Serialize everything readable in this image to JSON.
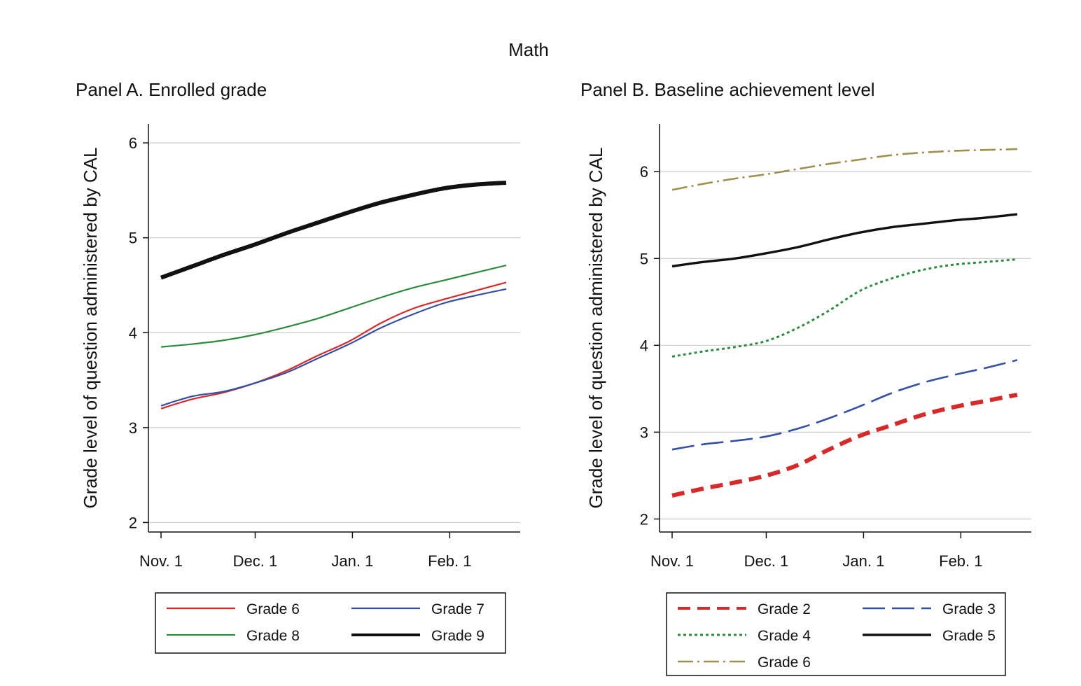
{
  "figure": {
    "title": "Math"
  },
  "colors": {
    "grade2": "#d62a2a",
    "grade3": "#3550a2",
    "grade4": "#2e8a3e",
    "grade5": "#111111",
    "grade6a": "#d62a2a",
    "grade6b": "#a09050",
    "grade7": "#3550a2",
    "grade8": "#2e8a3e",
    "grade9": "#111111",
    "grid": "#cccccc"
  },
  "chart_data": [
    {
      "type": "line",
      "title": "Panel A. Enrolled grade",
      "xlabel": "",
      "ylabel": "Grade level of question administered by CAL",
      "ylim": [
        1.9,
        6.2
      ],
      "yticks": [
        2,
        3,
        4,
        5,
        6
      ],
      "xlim": [
        -2,
        113
      ],
      "x_ticks": [
        {
          "day": 0,
          "label": "Nov. 1"
        },
        {
          "day": 30,
          "label": "Dec. 1"
        },
        {
          "day": 61,
          "label": "Jan. 1"
        },
        {
          "day": 92,
          "label": "Feb. 1"
        }
      ],
      "grid": true,
      "legend_position": "bottom",
      "legend_columns": 2,
      "x": [
        0,
        10,
        20,
        30,
        40,
        50,
        60,
        70,
        80,
        90,
        100,
        110
      ],
      "series": [
        {
          "name": "Grade 6",
          "color_key": "grade6a",
          "dash": "solid",
          "weight": 2.2,
          "values": [
            3.2,
            3.3,
            3.37,
            3.47,
            3.6,
            3.76,
            3.91,
            4.1,
            4.25,
            4.35,
            4.44,
            4.53
          ]
        },
        {
          "name": "Grade 7",
          "color_key": "grade7",
          "dash": "solid",
          "weight": 2.2,
          "values": [
            3.23,
            3.33,
            3.38,
            3.47,
            3.58,
            3.73,
            3.88,
            4.05,
            4.19,
            4.31,
            4.39,
            4.46
          ]
        },
        {
          "name": "Grade 8",
          "color_key": "grade8",
          "dash": "solid",
          "weight": 2.2,
          "values": [
            3.85,
            3.88,
            3.92,
            3.98,
            4.06,
            4.15,
            4.26,
            4.37,
            4.47,
            4.55,
            4.63,
            4.71
          ]
        },
        {
          "name": "Grade 9",
          "color_key": "grade9",
          "dash": "solid",
          "weight": 6,
          "values": [
            4.58,
            4.7,
            4.82,
            4.93,
            5.05,
            5.16,
            5.27,
            5.37,
            5.45,
            5.52,
            5.56,
            5.58
          ]
        }
      ]
    },
    {
      "type": "line",
      "title": "Panel B. Baseline achievement level",
      "xlabel": "",
      "ylabel": "Grade level of question administered by CAL",
      "ylim": [
        1.85,
        6.55
      ],
      "yticks": [
        2,
        3,
        4,
        5,
        6
      ],
      "xlim": [
        -2,
        113
      ],
      "x_ticks": [
        {
          "day": 0,
          "label": "Nov. 1"
        },
        {
          "day": 30,
          "label": "Dec. 1"
        },
        {
          "day": 61,
          "label": "Jan. 1"
        },
        {
          "day": 92,
          "label": "Feb. 1"
        }
      ],
      "grid": true,
      "legend_position": "bottom",
      "legend_columns": 2,
      "x": [
        0,
        10,
        20,
        30,
        40,
        50,
        60,
        70,
        80,
        90,
        100,
        110
      ],
      "series": [
        {
          "name": "Grade 2",
          "color_key": "grade2",
          "dash": "18,10",
          "weight": 6,
          "values": [
            2.27,
            2.35,
            2.42,
            2.5,
            2.62,
            2.8,
            2.96,
            3.08,
            3.2,
            3.29,
            3.36,
            3.43
          ]
        },
        {
          "name": "Grade 3",
          "color_key": "grade3",
          "dash": "32,10",
          "weight": 2.6,
          "values": [
            2.8,
            2.86,
            2.9,
            2.95,
            3.04,
            3.16,
            3.3,
            3.45,
            3.57,
            3.66,
            3.74,
            3.83
          ]
        },
        {
          "name": "Grade 4",
          "color_key": "grade4",
          "dash": "4,4",
          "weight": 3,
          "values": [
            3.87,
            3.93,
            3.98,
            4.05,
            4.2,
            4.4,
            4.63,
            4.77,
            4.87,
            4.93,
            4.96,
            4.99
          ]
        },
        {
          "name": "Grade 5",
          "color_key": "grade5",
          "dash": "solid",
          "weight": 3.4,
          "values": [
            4.91,
            4.96,
            5.0,
            5.06,
            5.13,
            5.22,
            5.3,
            5.36,
            5.4,
            5.44,
            5.47,
            5.51
          ]
        },
        {
          "name": "Grade 6",
          "color_key": "grade6b",
          "dash": "22,6,3,6",
          "weight": 2.6,
          "values": [
            5.79,
            5.86,
            5.92,
            5.97,
            6.03,
            6.09,
            6.14,
            6.19,
            6.22,
            6.24,
            6.25,
            6.26
          ]
        }
      ]
    }
  ]
}
